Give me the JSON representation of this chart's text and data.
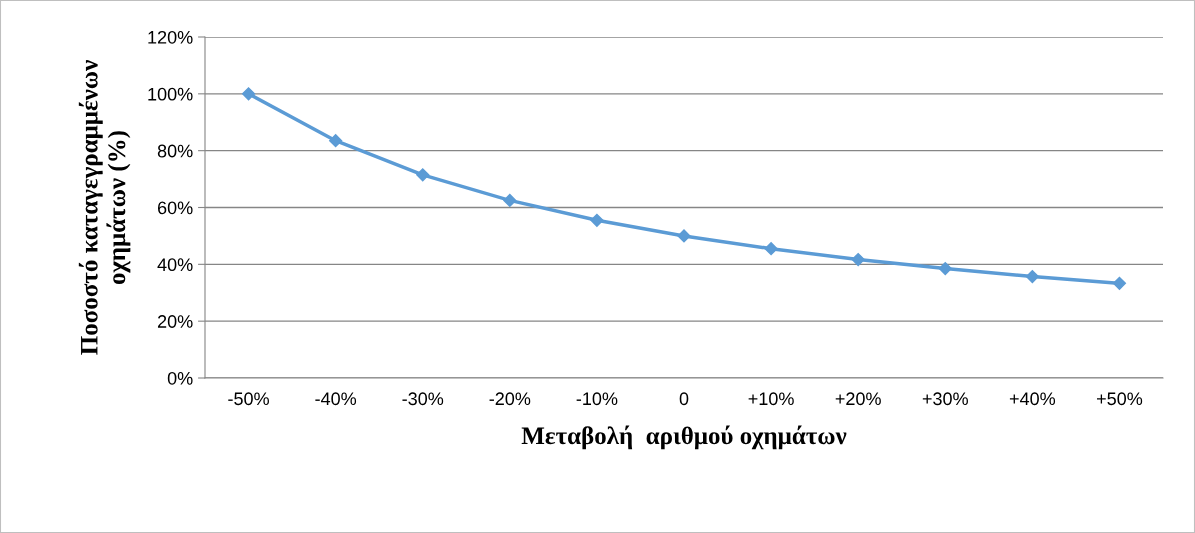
{
  "chart_data": {
    "type": "line",
    "xlabel": "Μεταβολή  αριθμού οχημάτων",
    "ylabel": "Ποσοστό καταγεγραμμένων\nοχημάτων (%)",
    "categories": [
      "-50%",
      "-40%",
      "-30%",
      "-20%",
      "-10%",
      "0",
      "+10%",
      "+20%",
      "+30%",
      "+40%",
      "+50%"
    ],
    "series": [
      {
        "color": "#5b9bd5",
        "values": [
          100,
          83.5,
          71.5,
          62.5,
          55.5,
          50,
          45.5,
          41.7,
          38.5,
          35.7,
          33.3
        ]
      }
    ],
    "ylim": [
      0,
      120
    ],
    "yticks": [
      {
        "value": 0,
        "label": "0%"
      },
      {
        "value": 20,
        "label": "20%"
      },
      {
        "value": 40,
        "label": "40%"
      },
      {
        "value": 60,
        "label": "60%"
      },
      {
        "value": 80,
        "label": "80%"
      },
      {
        "value": 100,
        "label": "100%"
      },
      {
        "value": 120,
        "label": "120%"
      }
    ],
    "grid": "y",
    "legend": false,
    "marker": "diamond",
    "line_style": "solid"
  }
}
